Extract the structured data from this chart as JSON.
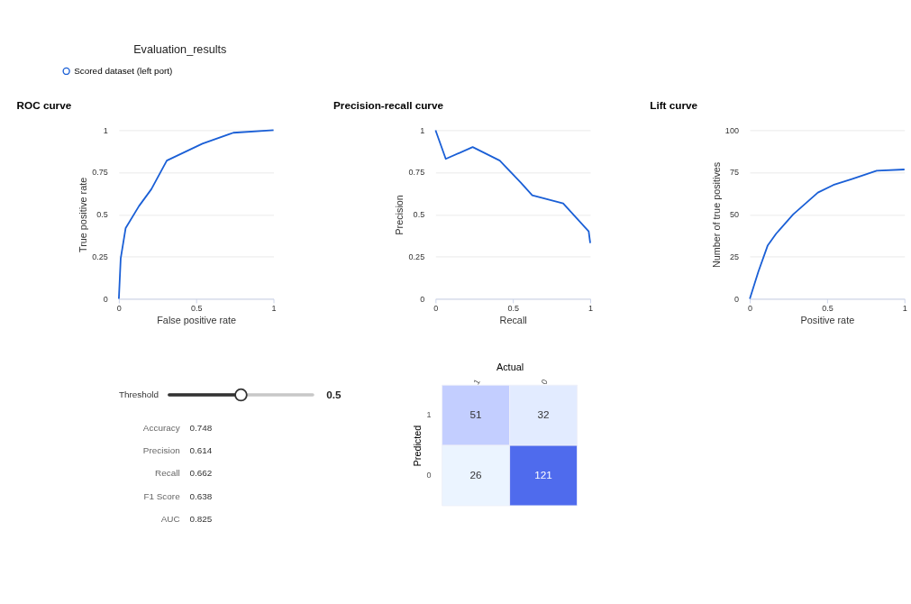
{
  "chart_data": [
    {
      "type": "other",
      "title": "Evaluation_results"
    },
    {
      "type": "line",
      "title": "ROC curve",
      "xlabel": "False positive rate",
      "ylabel": "True positive rate",
      "legend": "top left",
      "grid": "y",
      "xlim": [
        0,
        1
      ],
      "xticks": [
        0,
        0.5,
        1
      ],
      "ylim": [
        0,
        1
      ],
      "yticks": [
        0,
        0.25,
        0.5,
        0.75,
        1
      ],
      "series": [
        {
          "name": "Scored dataset (left port)",
          "color": "#1a5fd6",
          "x": [
            0,
            0.012,
            0.044,
            0.13,
            0.21,
            0.31,
            0.54,
            0.74,
            1
          ],
          "values": [
            0,
            0.24,
            0.42,
            0.55,
            0.65,
            0.82,
            0.92,
            0.985,
            1
          ]
        }
      ]
    },
    {
      "type": "line",
      "title": "Precision-recall curve",
      "xlabel": "Recall",
      "ylabel": "Precision",
      "grid": "y",
      "xlim": [
        0,
        1
      ],
      "xticks": [
        0,
        0.5,
        1
      ],
      "ylim": [
        0,
        1
      ],
      "yticks": [
        0,
        0.25,
        0.5,
        0.75,
        1
      ],
      "series": [
        {
          "color": "#1a5fd6",
          "x": [
            0,
            0.066,
            0.24,
            0.415,
            0.55,
            0.625,
            0.825,
            0.99,
            1
          ],
          "values": [
            1,
            0.83,
            0.9,
            0.82,
            0.69,
            0.614,
            0.566,
            0.4,
            0.33
          ]
        }
      ]
    },
    {
      "type": "line",
      "title": "Lift curve",
      "xlabel": "Positive rate",
      "ylabel": "Number of true positives",
      "grid": "y",
      "xlim": [
        0,
        1
      ],
      "xticks": [
        0,
        0.5,
        1
      ],
      "ylim": [
        0,
        100
      ],
      "yticks": [
        0,
        25,
        50,
        75,
        100
      ],
      "series": [
        {
          "color": "#1a5fd6",
          "x": [
            0,
            0.055,
            0.116,
            0.17,
            0.28,
            0.44,
            0.54,
            0.66,
            0.82,
            1
          ],
          "values": [
            0,
            16,
            31.7,
            38.6,
            50,
            63,
            67.5,
            71,
            76,
            76.7
          ]
        }
      ]
    },
    {
      "type": "other",
      "annotations": [
        "Threshold",
        "0.5"
      ],
      "categories": [
        "Accuracy",
        "Precision",
        "Recall",
        "F1 Score",
        "AUC"
      ],
      "values": [
        0.748,
        0.614,
        0.662,
        0.638,
        0.825
      ],
      "data_labels": true
    },
    {
      "type": "heatmap",
      "xlabel": "Actual",
      "ylabel": "Predicted",
      "categories": [
        "1",
        "0"
      ],
      "y_categories": [
        "1",
        "0"
      ],
      "cells": [
        [
          51,
          32
        ],
        [
          26,
          121
        ]
      ],
      "data_labels": true
    }
  ]
}
